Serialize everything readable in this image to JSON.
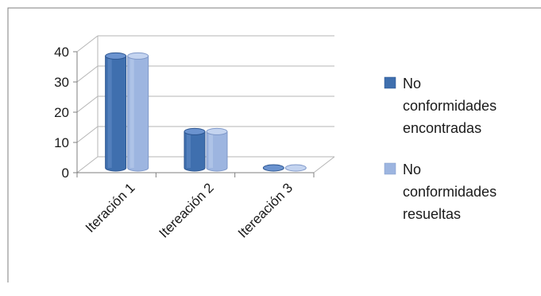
{
  "chart_data": {
    "type": "bar",
    "categories": [
      "Iteración 1",
      "Itereación 2",
      "Itereación 3"
    ],
    "series": [
      {
        "name": "No conformidades encontradas",
        "values": [
          37,
          12,
          0
        ]
      },
      {
        "name": "No conformidades resueltas",
        "values": [
          37,
          12,
          0
        ]
      }
    ],
    "ylim": [
      0,
      40
    ],
    "yticks": [
      0,
      10,
      20,
      30,
      40
    ],
    "grid": true,
    "legend_position": "right",
    "style": "3d-cylinder",
    "colors": {
      "series": [
        "#3f6fae",
        "#9db5e0"
      ],
      "series_dark": [
        "#2c5590",
        "#7f98c8"
      ],
      "series_light": [
        "#6b93cf",
        "#c4d4f0"
      ],
      "grid": "#b5b5b5",
      "axis": "#7f7f7f",
      "frame": "#7f7f7f"
    }
  },
  "legend": {
    "items": [
      {
        "lines": [
          "No",
          "conformidades",
          "encontradas"
        ]
      },
      {
        "lines": [
          "No",
          "conformidades",
          "resueltas"
        ]
      }
    ]
  }
}
